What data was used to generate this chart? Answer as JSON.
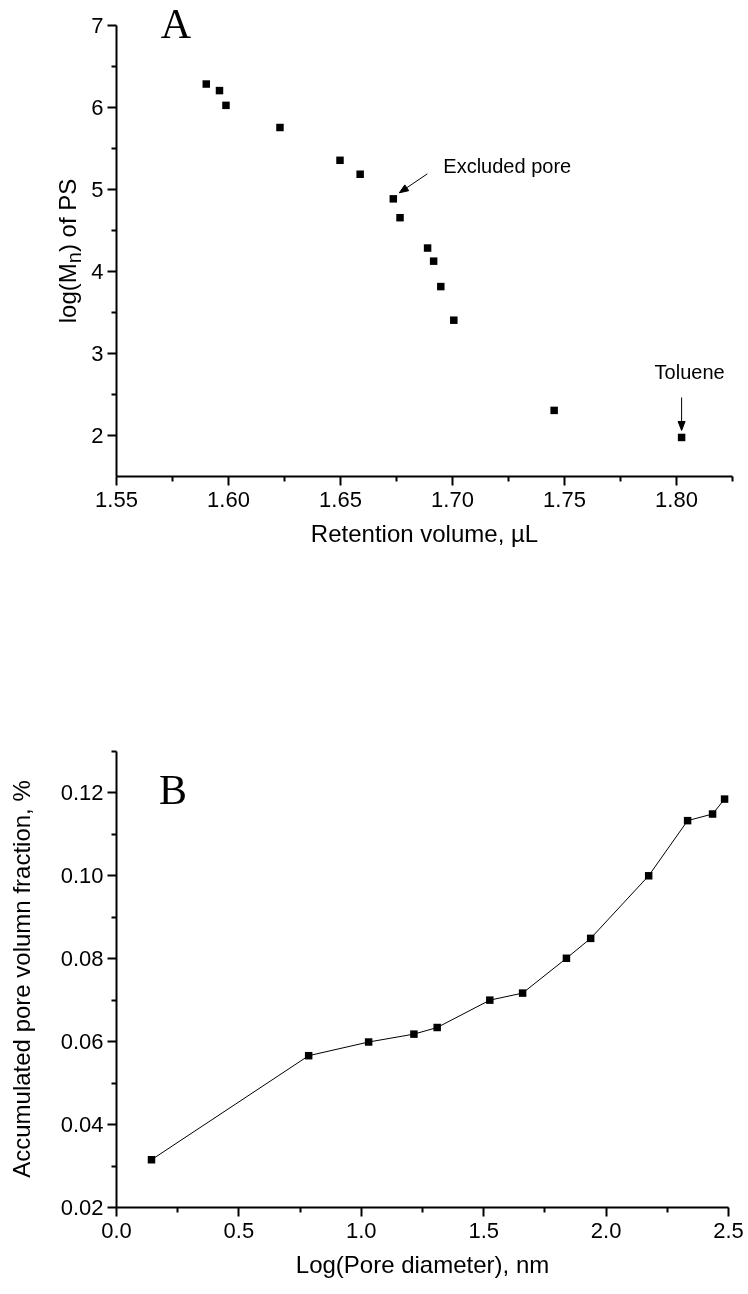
{
  "chart_data": [
    {
      "type": "scatter",
      "annotations": [
        "A",
        {
          "text": "Excluded pore",
          "x": 1.6738,
          "y": 4.88
        },
        {
          "text": "Toluene",
          "x": 1.8025,
          "y": 1.97
        }
      ],
      "xlabel": "Retention volume, µL",
      "ylabel": "log(M$_{n}$) of PS",
      "x": [
        1.5903,
        1.5962,
        1.5991,
        1.6232,
        1.65,
        1.659,
        1.6738,
        1.6768,
        1.6891,
        1.6918,
        1.695,
        1.7008,
        1.7456,
        1.8025
      ],
      "values": [
        6.28,
        6.2,
        6.02,
        5.75,
        5.35,
        5.18,
        4.88,
        4.65,
        4.28,
        4.12,
        3.81,
        3.4,
        2.3,
        1.97
      ],
      "color": "#000000",
      "marker": "square",
      "xlim": [
        1.55,
        1.825
      ],
      "ylim": [
        1.5,
        7
      ],
      "xticks": [
        1.55,
        {
          "value": 1.575,
          "label": null
        },
        {
          "value": 1.6,
          "label": "1.60"
        },
        {
          "value": 1.625,
          "label": null
        },
        1.65,
        {
          "value": 1.675,
          "label": null
        },
        {
          "value": 1.7,
          "label": "1.70"
        },
        {
          "value": 1.725,
          "label": null
        },
        1.75,
        {
          "value": 1.775,
          "label": null
        },
        {
          "value": 1.8,
          "label": "1.80"
        },
        {
          "value": 1.825,
          "label": null
        }
      ],
      "yticks": [
        2,
        {
          "value": 2.5,
          "label": null
        },
        3,
        {
          "value": 3.5,
          "label": null
        },
        4,
        {
          "value": 4.5,
          "label": null
        },
        5,
        {
          "value": 5.5,
          "label": null
        },
        6,
        {
          "value": 6.5,
          "label": null
        },
        7
      ]
    },
    {
      "type": "line",
      "annotations": [
        "B"
      ],
      "xlabel": "Log(Pore diameter), nm",
      "ylabel": "Accumulated pore volumn fraction, %",
      "x": [
        0.145,
        0.787,
        1.032,
        1.217,
        1.312,
        1.527,
        1.661,
        1.84,
        1.939,
        2.176,
        2.335,
        2.437,
        2.486
      ],
      "values": [
        0.0314,
        0.0565,
        0.0598,
        0.0617,
        0.0633,
        0.0699,
        0.0716,
        0.08,
        0.0848,
        0.0999,
        0.1132,
        0.1148,
        0.1184
      ],
      "color": "#000000",
      "marker": "square",
      "line_style": "solid",
      "xlim": [
        0,
        2.5
      ],
      "ylim": [
        0.02,
        0.13
      ],
      "xticks": [
        {
          "value": 0,
          "label": "0.0"
        },
        {
          "value": 0.25,
          "label": null
        },
        0.5,
        {
          "value": 0.75,
          "label": null
        },
        {
          "value": 1,
          "label": "1.0"
        },
        {
          "value": 1.25,
          "label": null
        },
        1.5,
        {
          "value": 1.75,
          "label": null
        },
        {
          "value": 2,
          "label": "2.0"
        },
        {
          "value": 2.25,
          "label": null
        },
        2.5
      ],
      "yticks": [
        0.02,
        {
          "value": 0.03,
          "label": null
        },
        0.04,
        {
          "value": 0.05,
          "label": null
        },
        0.06,
        {
          "value": 0.07,
          "label": null
        },
        0.08,
        {
          "value": 0.09,
          "label": null
        },
        {
          "value": 0.1,
          "label": "0.10"
        },
        {
          "value": 0.11,
          "label": null
        },
        0.12,
        {
          "value": 0.13,
          "label": null
        }
      ]
    }
  ]
}
